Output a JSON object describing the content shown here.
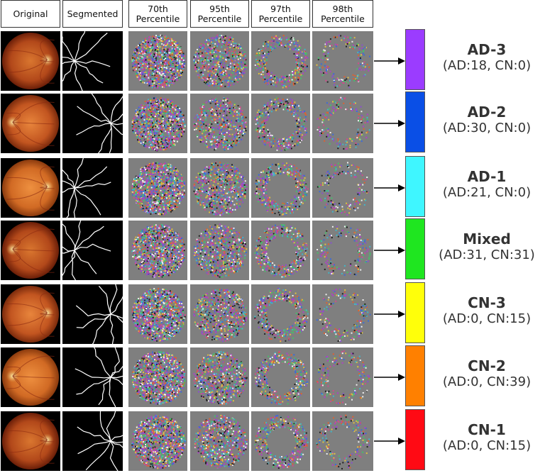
{
  "columns": [
    "Original",
    "Segmented",
    "70th\nPercentile",
    "95th\nPercentile",
    "97th\nPercentile",
    "98th\nPercentile"
  ],
  "rows": [
    {
      "class_name": "AD-3",
      "counts": "(AD:18, CN:0)",
      "color": "#9b3cff"
    },
    {
      "class_name": "AD-2",
      "counts": "(AD:30, CN:0)",
      "color": "#0a4fe6"
    },
    {
      "class_name": "AD-1",
      "counts": "(AD:21, CN:0)",
      "color": "#3ff6ff"
    },
    {
      "class_name": "Mixed",
      "counts": "(AD:31, CN:31)",
      "color": "#1fe620"
    },
    {
      "class_name": "CN-3",
      "counts": "(AD:0, CN:15)",
      "color": "#ffff0a"
    },
    {
      "class_name": "CN-2",
      "counts": "(AD:0, CN:39)",
      "color": "#ff8000"
    },
    {
      "class_name": "CN-1",
      "counts": "(AD:0, CN:15)",
      "color": "#ff0a14"
    }
  ]
}
